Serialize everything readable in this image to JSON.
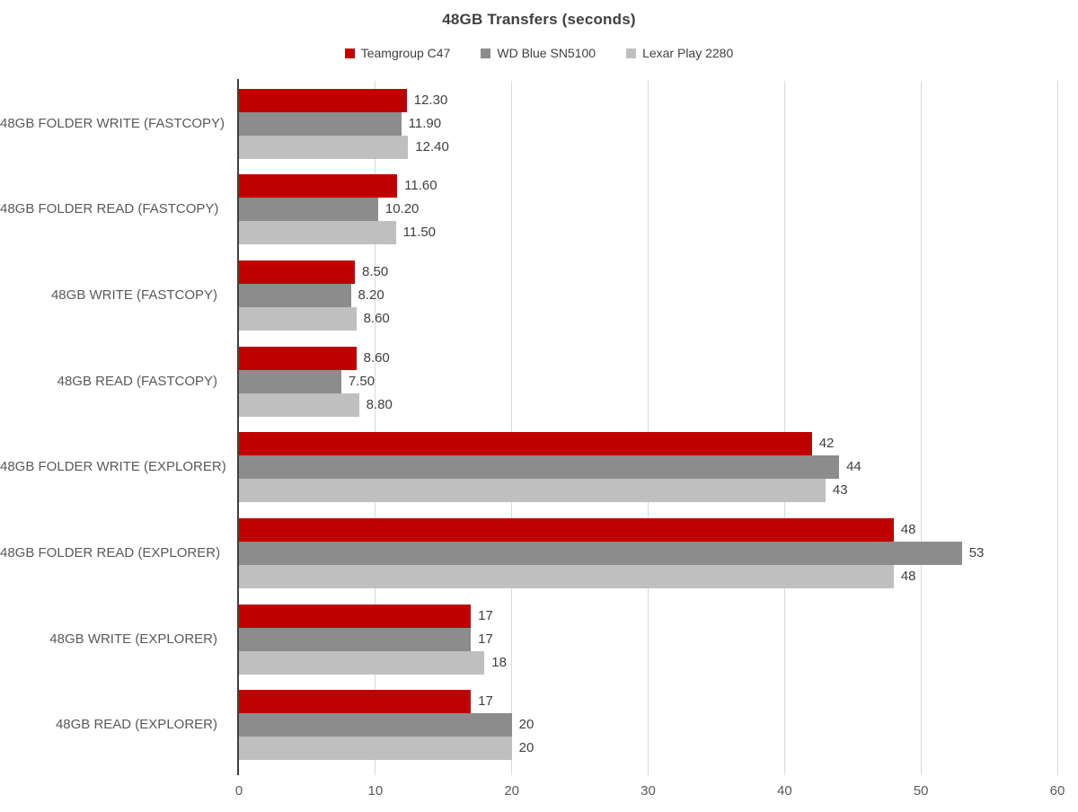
{
  "title": "48GB Transfers (seconds)",
  "colors": {
    "series_red": "#C00000",
    "series_gray": "#8C8C8C",
    "series_lightgray": "#BFBFBF",
    "gridline": "#D9D9D9",
    "axis_line": "#404040",
    "title_text": "#404040",
    "category_text": "#595959",
    "value_text": "#3F3F3F"
  },
  "chart_data": {
    "type": "bar",
    "orientation": "horizontal",
    "title": "48GB Transfers (seconds)",
    "categories": [
      "48GB FOLDER WRITE (FASTCOPY)",
      "48GB FOLDER READ (FASTCOPY)",
      "48GB WRITE (FASTCOPY)",
      "48GB READ (FASTCOPY)",
      "48GB FOLDER WRITE (EXPLORER)",
      "48GB FOLDER READ (EXPLORER)",
      "48GB WRITE (EXPLORER)",
      "48GB READ (EXPLORER)"
    ],
    "series": [
      {
        "name": "Teamgroup C47",
        "color": "#C00000",
        "values": [
          12.3,
          11.6,
          8.5,
          8.6,
          42,
          48,
          17,
          17
        ],
        "labels": [
          "12.30",
          "11.60",
          "8.50",
          "8.60",
          "42",
          "48",
          "17",
          "17"
        ]
      },
      {
        "name": "WD Blue SN5100",
        "color": "#8C8C8C",
        "values": [
          11.9,
          10.2,
          8.2,
          7.5,
          44,
          53,
          17,
          20
        ],
        "labels": [
          "11.90",
          "10.20",
          "8.20",
          "7.50",
          "44",
          "53",
          "17",
          "20"
        ]
      },
      {
        "name": "Lexar Play 2280",
        "color": "#BFBFBF",
        "values": [
          12.4,
          11.5,
          8.6,
          8.8,
          43,
          48,
          18,
          20
        ],
        "labels": [
          "12.40",
          "11.50",
          "8.60",
          "8.80",
          "43",
          "48",
          "18",
          "20"
        ]
      }
    ],
    "xlabel": "",
    "ylabel": "",
    "xlim": [
      0,
      60
    ],
    "xticks": [
      0,
      10,
      20,
      30,
      40,
      50,
      60
    ],
    "grid": true,
    "legend_position": "top",
    "data_labels": true
  }
}
